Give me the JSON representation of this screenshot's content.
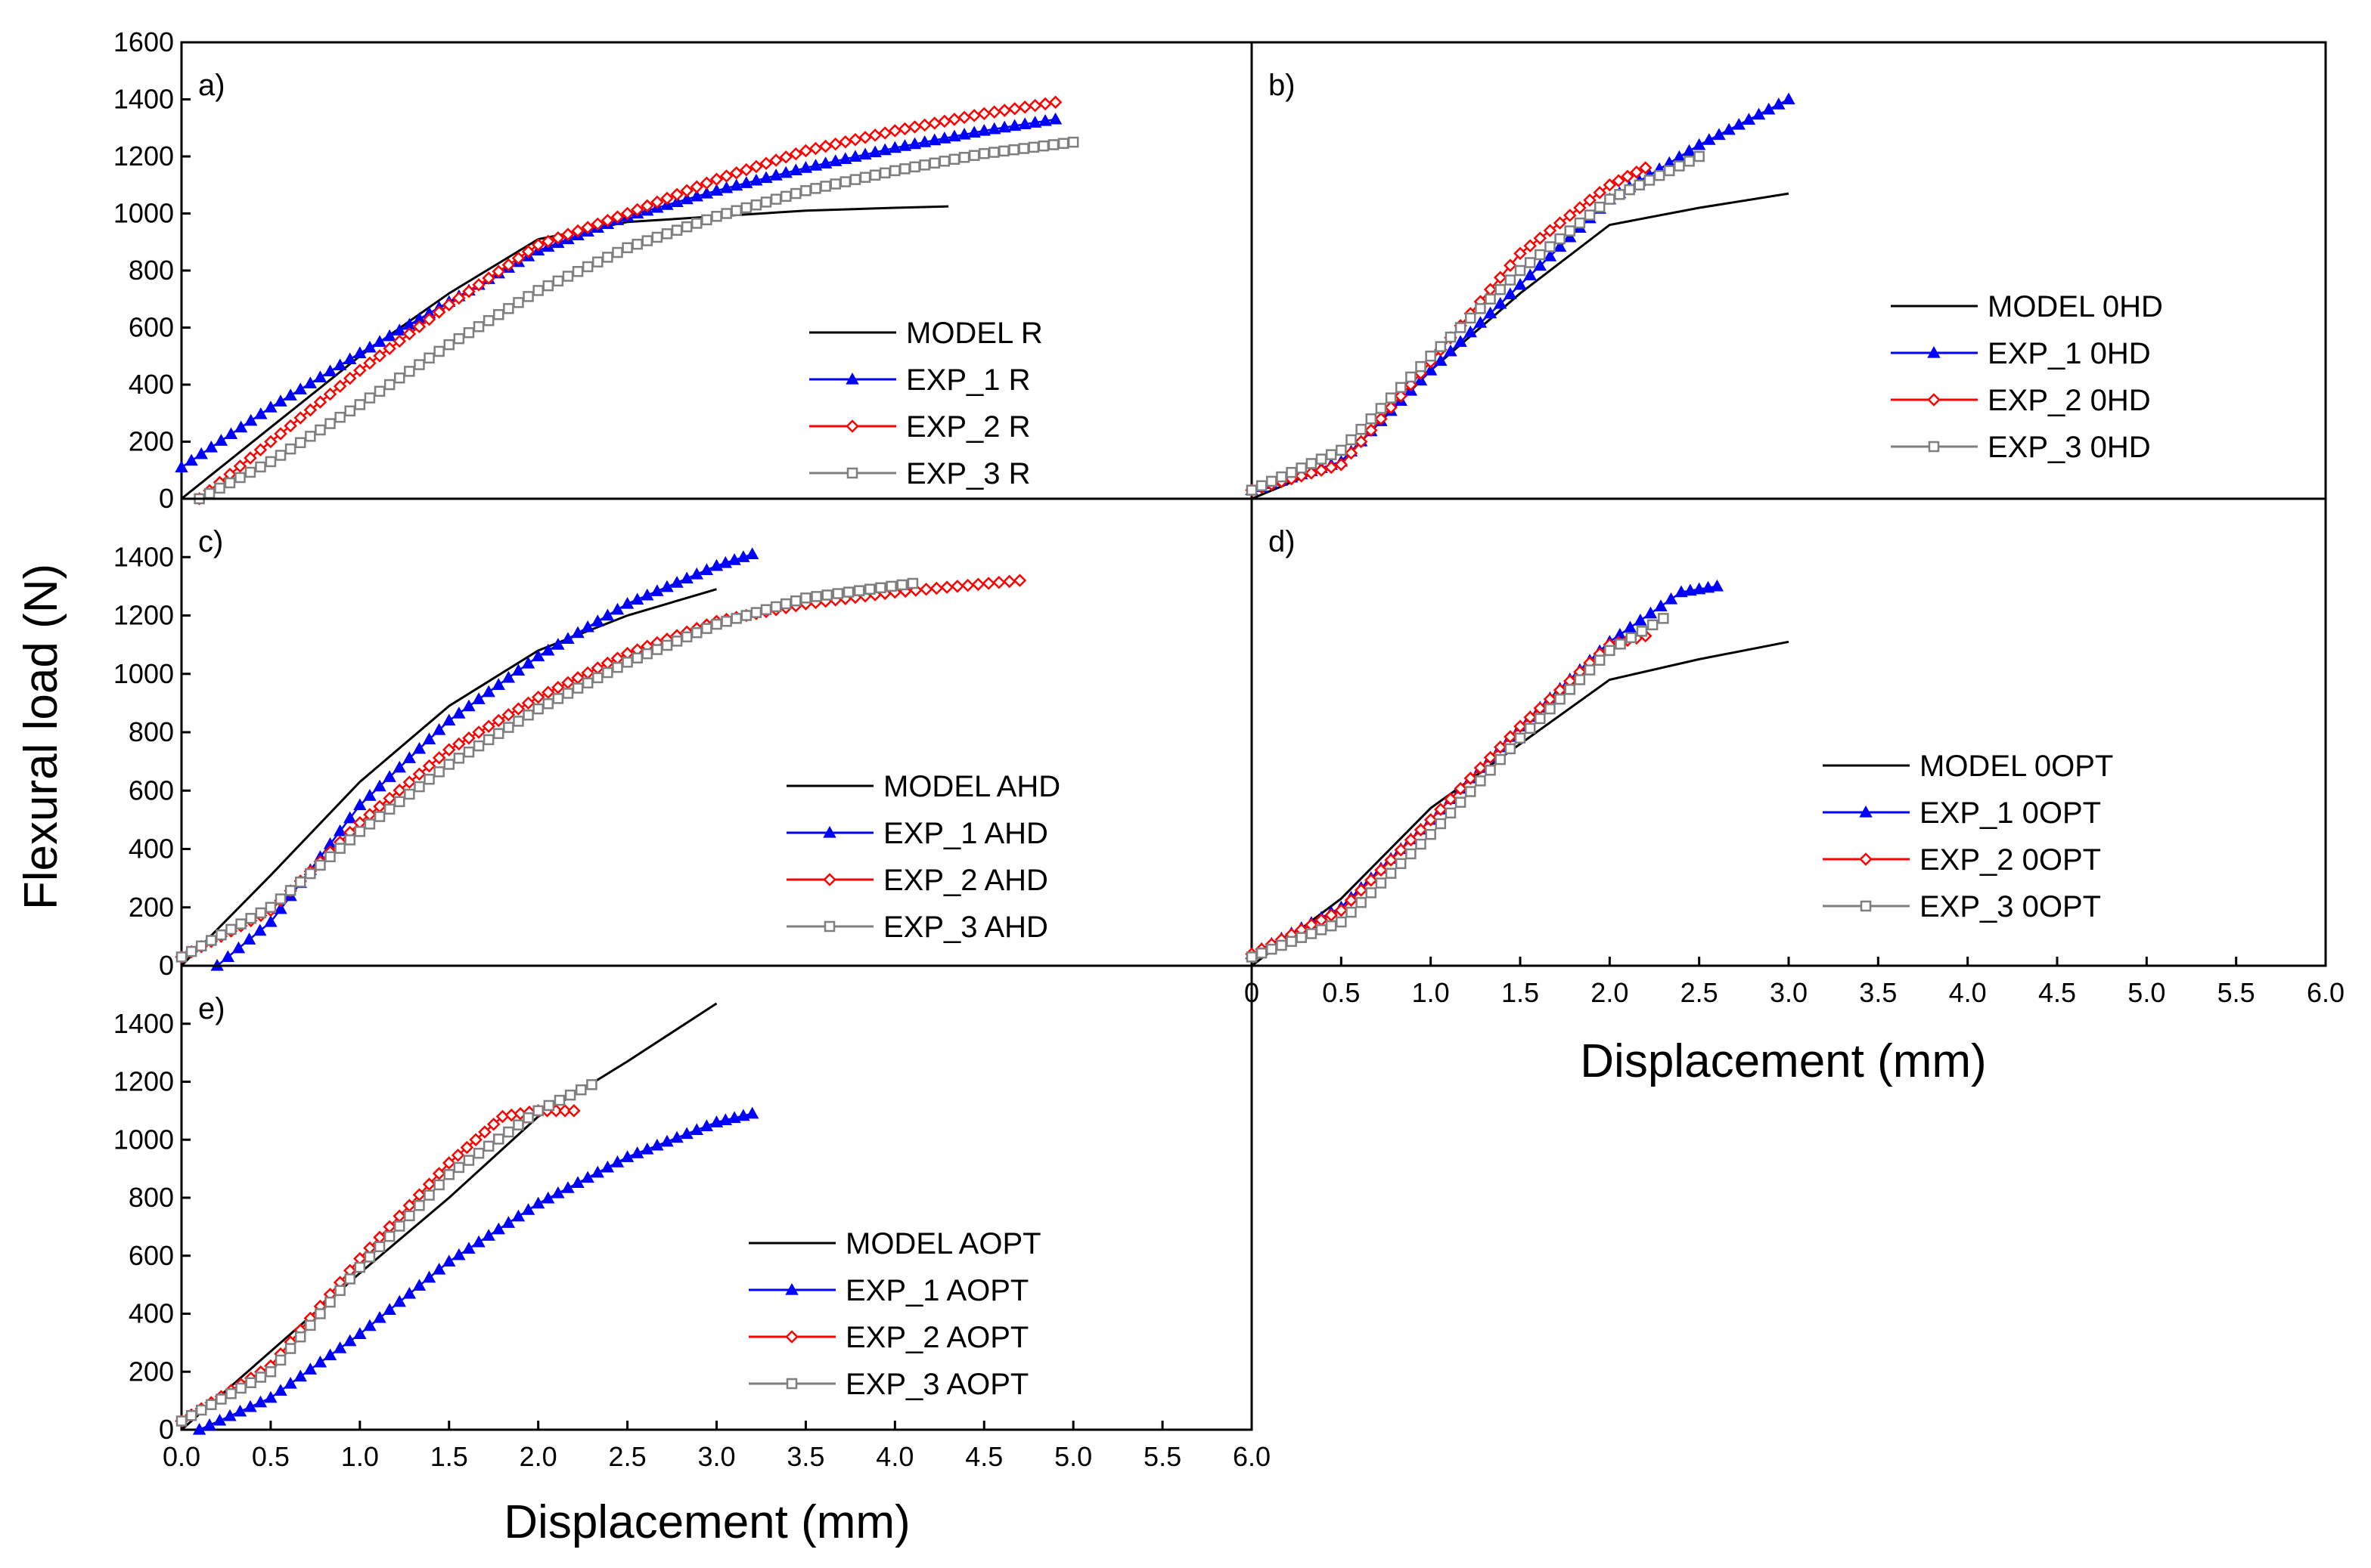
{
  "figure": {
    "ylabel": "Flexural load (N)",
    "xlabel": "Displacement (mm)"
  },
  "colors": {
    "model": "#000000",
    "exp1": "#0000ff",
    "exp2": "#ff0000",
    "exp3": "#7f7f7f"
  },
  "chart_data": [
    {
      "type": "line",
      "panel": "a)",
      "xlim": [
        0,
        6.0
      ],
      "ylim": [
        0,
        1600
      ],
      "yticks": [
        "0",
        "200",
        "400",
        "600",
        "800",
        "1000",
        "1200",
        "1400",
        "1600"
      ],
      "xticks": [],
      "legend_position": "center-right",
      "series": [
        {
          "name": "MODEL R",
          "marker": "none",
          "x": [
            0,
            0.5,
            1.0,
            1.5,
            2.0,
            2.5,
            3.0,
            3.5,
            4.0,
            4.3
          ],
          "y": [
            0,
            250,
            500,
            720,
            910,
            970,
            990,
            1010,
            1020,
            1025
          ]
        },
        {
          "name": "EXP_1 R",
          "marker": "triangle",
          "x": [
            0,
            0.5,
            1.0,
            1.5,
            2.0,
            2.5,
            3.0,
            3.5,
            4.0,
            4.5,
            4.9
          ],
          "y": [
            110,
            320,
            510,
            690,
            870,
            990,
            1080,
            1160,
            1230,
            1290,
            1330
          ]
        },
        {
          "name": "EXP_2 R",
          "marker": "diamond",
          "x": [
            0.1,
            0.5,
            1.0,
            1.5,
            2.0,
            2.5,
            3.0,
            3.5,
            4.0,
            4.5,
            4.9
          ],
          "y": [
            0,
            200,
            450,
            680,
            890,
            1000,
            1120,
            1220,
            1290,
            1350,
            1390
          ]
        },
        {
          "name": "EXP_3 R",
          "marker": "square",
          "x": [
            0.1,
            0.5,
            1.0,
            1.5,
            2.0,
            2.5,
            3.0,
            3.5,
            4.0,
            4.5,
            5.0
          ],
          "y": [
            0,
            130,
            330,
            540,
            730,
            880,
            990,
            1080,
            1150,
            1210,
            1250
          ]
        }
      ]
    },
    {
      "type": "line",
      "panel": "b)",
      "xlim": [
        0,
        6.0
      ],
      "ylim": [
        0,
        1600
      ],
      "yticks": [],
      "xticks": [],
      "legend_position": "center-right",
      "series": [
        {
          "name": "MODEL   0HD",
          "marker": "none",
          "x": [
            0,
            0.5,
            1.0,
            1.5,
            2.0,
            2.5,
            3.0
          ],
          "y": [
            0,
            130,
            450,
            720,
            960,
            1020,
            1070
          ]
        },
        {
          "name": "EXP_1   0HD",
          "marker": "triangle",
          "x": [
            0,
            0.5,
            1.0,
            1.5,
            2.0,
            2.5,
            3.0
          ],
          "y": [
            30,
            130,
            450,
            750,
            1050,
            1240,
            1400
          ]
        },
        {
          "name": "EXP_2   0HD",
          "marker": "diamond",
          "x": [
            0,
            0.5,
            1.0,
            1.5,
            2.0,
            2.2
          ],
          "y": [
            30,
            120,
            480,
            860,
            1100,
            1160
          ]
        },
        {
          "name": "EXP_3   0HD",
          "marker": "square",
          "x": [
            0,
            0.5,
            1.0,
            1.5,
            2.0,
            2.5
          ],
          "y": [
            30,
            170,
            500,
            800,
            1050,
            1200
          ]
        }
      ]
    },
    {
      "type": "line",
      "panel": "c)",
      "xlim": [
        0,
        6.0
      ],
      "ylim": [
        0,
        1600
      ],
      "yticks": [
        "0",
        "200",
        "400",
        "600",
        "800",
        "1000",
        "1200",
        "1400"
      ],
      "xticks": [],
      "legend_position": "center-right",
      "series": [
        {
          "name": "MODEL AHD",
          "marker": "none",
          "x": [
            0,
            0.5,
            1.0,
            1.5,
            2.0,
            2.5,
            3.0
          ],
          "y": [
            0,
            310,
            630,
            890,
            1080,
            1200,
            1290
          ]
        },
        {
          "name": "EXP_1 AHD",
          "marker": "triangle",
          "x": [
            0.2,
            0.5,
            1.0,
            1.5,
            2.0,
            2.5,
            3.0,
            3.2
          ],
          "y": [
            0,
            150,
            550,
            840,
            1060,
            1240,
            1370,
            1410
          ]
        },
        {
          "name": "EXP_2 AHD",
          "marker": "diamond",
          "x": [
            0,
            0.5,
            1.0,
            1.5,
            2.0,
            2.5,
            3.0,
            3.5,
            4.0,
            4.7
          ],
          "y": [
            30,
            190,
            490,
            740,
            920,
            1070,
            1180,
            1240,
            1280,
            1320
          ]
        },
        {
          "name": "EXP_3 AHD",
          "marker": "square",
          "x": [
            0,
            0.5,
            1.0,
            1.5,
            2.0,
            2.5,
            3.0,
            3.5,
            4.1
          ],
          "y": [
            30,
            200,
            460,
            690,
            880,
            1040,
            1170,
            1260,
            1310
          ]
        }
      ]
    },
    {
      "type": "line",
      "panel": "d)",
      "xlim": [
        0,
        6.0
      ],
      "ylim": [
        0,
        1600
      ],
      "yticks": [],
      "xticks": [
        "0",
        "0.5",
        "1.0",
        "1.5",
        "2.0",
        "2.5",
        "3.0",
        "3.5",
        "4.0",
        "4.5",
        "5.0",
        "5.5",
        "6.0"
      ],
      "legend_position": "center-right",
      "series": [
        {
          "name": "MODEL   0OPT",
          "marker": "none",
          "x": [
            0,
            0.5,
            1.0,
            1.5,
            2.0,
            2.5,
            3.0
          ],
          "y": [
            0,
            230,
            540,
            760,
            980,
            1050,
            1110
          ]
        },
        {
          "name": "EXP_1   0OPT",
          "marker": "triangle",
          "x": [
            0,
            0.5,
            1.0,
            1.5,
            2.0,
            2.4,
            2.6
          ],
          "y": [
            40,
            200,
            500,
            820,
            1110,
            1280,
            1300
          ]
        },
        {
          "name": "EXP_2   0OPT",
          "marker": "diamond",
          "x": [
            0,
            0.5,
            1.0,
            1.5,
            2.0,
            2.2
          ],
          "y": [
            40,
            190,
            500,
            820,
            1100,
            1130
          ]
        },
        {
          "name": "EXP_3   0OPT",
          "marker": "square",
          "x": [
            0,
            0.5,
            1.0,
            1.5,
            2.0,
            2.3
          ],
          "y": [
            30,
            150,
            450,
            780,
            1080,
            1190
          ]
        }
      ]
    },
    {
      "type": "line",
      "panel": "e)",
      "xlim": [
        0,
        6.0
      ],
      "ylim": [
        0,
        1600
      ],
      "yticks": [
        "0",
        "200",
        "400",
        "600",
        "800",
        "1000",
        "1200",
        "1400"
      ],
      "xticks": [
        "0.0",
        "0.5",
        "1.0",
        "1.5",
        "2.0",
        "2.5",
        "3.0",
        "3.5",
        "4.0",
        "4.5",
        "5.0",
        "5.5",
        "6.0"
      ],
      "legend_position": "center-right",
      "series": [
        {
          "name": "MODEL AOPT",
          "marker": "none",
          "x": [
            0,
            0.5,
            1.0,
            1.5,
            2.0,
            2.5,
            3.0
          ],
          "y": [
            0,
            270,
            540,
            800,
            1080,
            1270,
            1470
          ]
        },
        {
          "name": "EXP_1 AOPT",
          "marker": "triangle",
          "x": [
            0.1,
            0.5,
            1.0,
            1.5,
            2.0,
            2.5,
            3.0,
            3.2
          ],
          "y": [
            0,
            110,
            330,
            580,
            780,
            940,
            1060,
            1090
          ]
        },
        {
          "name": "EXP_2 AOPT",
          "marker": "diamond",
          "x": [
            0,
            0.5,
            1.0,
            1.5,
            1.8,
            2.0,
            2.2
          ],
          "y": [
            30,
            220,
            590,
            920,
            1080,
            1100,
            1100
          ]
        },
        {
          "name": "EXP_3 AOPT",
          "marker": "square",
          "x": [
            0,
            0.5,
            1.0,
            1.5,
            2.0,
            2.3
          ],
          "y": [
            30,
            200,
            560,
            880,
            1100,
            1190
          ]
        }
      ]
    }
  ]
}
